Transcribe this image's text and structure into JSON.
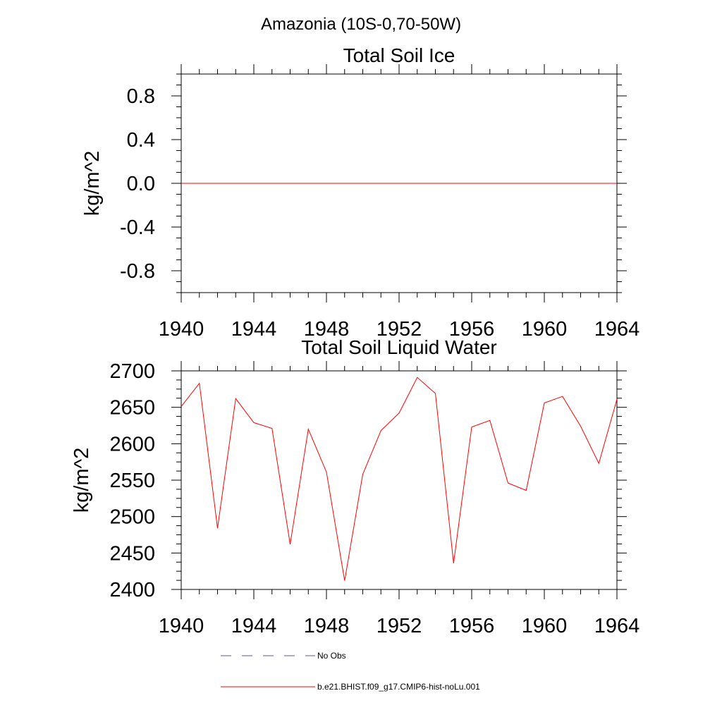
{
  "figure_title": "Amazonia (10S-0,70-50W)",
  "chart_data": [
    {
      "type": "line",
      "title": "Total Soil Ice",
      "xlabel": "",
      "ylabel": "kg/m^2",
      "xlim": [
        1940,
        1964
      ],
      "ylim": [
        -1.0,
        1.0
      ],
      "x_ticks": [
        "1940",
        "1944",
        "1948",
        "1952",
        "1956",
        "1960",
        "1964"
      ],
      "y_ticks": [
        "-0.8",
        "-0.4",
        "0.0",
        "0.4",
        "0.8"
      ],
      "series": [
        {
          "name": "b.e21.BHIST.f09_g17.CMIP6-hist-noLu.001",
          "color": "#ff0000",
          "x": [
            1940,
            1964
          ],
          "values": [
            0,
            0
          ]
        }
      ]
    },
    {
      "type": "line",
      "title": "Total Soil Liquid Water",
      "xlabel": "",
      "ylabel": "kg/m^2",
      "xlim": [
        1940,
        1964
      ],
      "ylim": [
        2400,
        2700
      ],
      "x_ticks": [
        "1940",
        "1944",
        "1948",
        "1952",
        "1956",
        "1960",
        "1964"
      ],
      "y_ticks": [
        "2400",
        "2450",
        "2500",
        "2550",
        "2600",
        "2650",
        "2700"
      ],
      "series": [
        {
          "name": "b.e21.BHIST.f09_g17.CMIP6-hist-noLu.001",
          "color": "#ff0000",
          "x": [
            1940,
            1941,
            1942,
            1943,
            1944,
            1945,
            1946,
            1947,
            1948,
            1949,
            1950,
            1951,
            1952,
            1953,
            1954,
            1955,
            1956,
            1957,
            1958,
            1959,
            1960,
            1961,
            1962,
            1963,
            1964
          ],
          "values": [
            2651,
            2683,
            2484,
            2662,
            2629,
            2621,
            2462,
            2620,
            2561,
            2412,
            2558,
            2618,
            2642,
            2691,
            2669,
            2436,
            2623,
            2632,
            2546,
            2536,
            2656,
            2665,
            2624,
            2573,
            2661
          ]
        }
      ]
    }
  ],
  "legend": [
    {
      "label": "No Obs",
      "style": "dashed",
      "color": "#5a5a8a"
    },
    {
      "label": "b.e21.BHIST.f09_g17.CMIP6-hist-noLu.001",
      "style": "solid",
      "color": "#ff0000"
    }
  ]
}
